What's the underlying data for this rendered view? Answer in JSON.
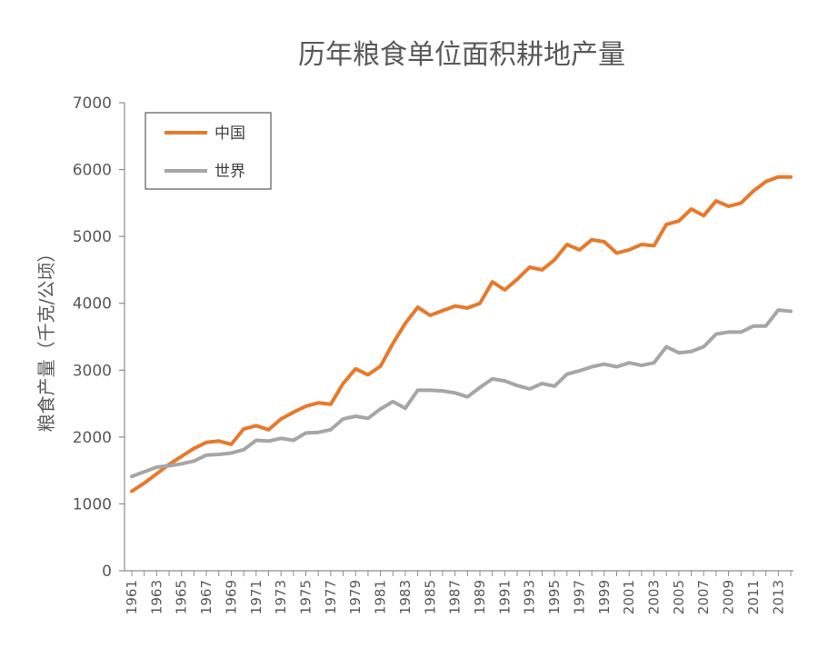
{
  "chart_data": {
    "type": "line",
    "title": "历年粮食单位面积耕地产量",
    "xlabel": "",
    "ylabel": "粮食产量（千克/公顷）",
    "ylim": [
      0,
      7000
    ],
    "yticks": [
      0,
      1000,
      2000,
      3000,
      4000,
      5000,
      6000,
      7000
    ],
    "x": [
      1961,
      1962,
      1963,
      1964,
      1965,
      1966,
      1967,
      1968,
      1969,
      1970,
      1971,
      1972,
      1973,
      1974,
      1975,
      1976,
      1977,
      1978,
      1979,
      1980,
      1981,
      1982,
      1983,
      1984,
      1985,
      1986,
      1987,
      1988,
      1989,
      1990,
      1991,
      1992,
      1993,
      1994,
      1995,
      1996,
      1997,
      1998,
      1999,
      2000,
      2001,
      2002,
      2003,
      2004,
      2005,
      2006,
      2007,
      2008,
      2009,
      2010,
      2011,
      2012,
      2013,
      2014
    ],
    "xtick_labels": [
      "1961",
      "1963",
      "1965",
      "1967",
      "1969",
      "1971",
      "1973",
      "1975",
      "1977",
      "1979",
      "1981",
      "1983",
      "1985",
      "1987",
      "1989",
      "1991",
      "1993",
      "1995",
      "1997",
      "1999",
      "2001",
      "2003",
      "2005",
      "2007",
      "2009",
      "2011",
      "2013"
    ],
    "legend_position": "top-left",
    "grid": false,
    "series": [
      {
        "name": "中国",
        "color": "#E8792B",
        "values": [
          1190,
          1310,
          1450,
          1590,
          1710,
          1830,
          1920,
          1940,
          1890,
          2120,
          2170,
          2110,
          2270,
          2370,
          2460,
          2510,
          2490,
          2800,
          3020,
          2930,
          3060,
          3400,
          3700,
          3940,
          3820,
          3890,
          3960,
          3930,
          4000,
          4320,
          4200,
          4360,
          4540,
          4500,
          4650,
          4880,
          4800,
          4950,
          4920,
          4750,
          4800,
          4880,
          4860,
          5180,
          5230,
          5410,
          5310,
          5530,
          5450,
          5500,
          5680,
          5820,
          5890,
          5890
        ]
      },
      {
        "name": "世界",
        "color": "#A6A6A6",
        "values": [
          1410,
          1480,
          1550,
          1570,
          1600,
          1640,
          1730,
          1740,
          1760,
          1810,
          1950,
          1940,
          1980,
          1950,
          2060,
          2070,
          2110,
          2270,
          2310,
          2280,
          2420,
          2530,
          2430,
          2700,
          2700,
          2690,
          2660,
          2600,
          2740,
          2870,
          2840,
          2770,
          2720,
          2800,
          2760,
          2940,
          2990,
          3050,
          3090,
          3050,
          3110,
          3070,
          3110,
          3350,
          3260,
          3280,
          3350,
          3540,
          3570,
          3570,
          3660,
          3660,
          3900,
          3880
        ]
      }
    ]
  }
}
